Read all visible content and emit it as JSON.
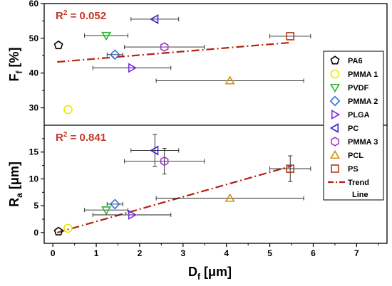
{
  "chart_data": [
    {
      "type": "scatter",
      "panel": "top",
      "ylabel": "F",
      "ylabel_sub": "f",
      "ylabel_unit": "[%]",
      "ylim": [
        25,
        60
      ],
      "yticks": [
        30,
        40,
        50,
        60
      ],
      "annotation": {
        "prefix": "R",
        "sup": "2",
        "value": " = 0.052"
      },
      "points": [
        {
          "name": "PA6",
          "x": 0.13,
          "y": 48.0,
          "xerr": 0.0
        },
        {
          "name": "PMMA 1",
          "x": 0.35,
          "y": 29.5,
          "xerr": 0.0
        },
        {
          "name": "PVDF",
          "x": 1.23,
          "y": 50.8,
          "xerr": 0.5
        },
        {
          "name": "PMMA 2",
          "x": 1.43,
          "y": 45.3,
          "xerr": 0.18
        },
        {
          "name": "PLGA",
          "x": 1.82,
          "y": 41.5,
          "xerr": 0.9
        },
        {
          "name": "PC",
          "x": 2.35,
          "y": 55.5,
          "xerr": 0.55
        },
        {
          "name": "PMMA 3",
          "x": 2.57,
          "y": 47.5,
          "xerr": 0.92
        },
        {
          "name": "PCL",
          "x": 4.08,
          "y": 37.8,
          "xerr": 1.7
        },
        {
          "name": "PS",
          "x": 5.47,
          "y": 50.6,
          "xerr": 0.47
        }
      ],
      "trend": {
        "x": [
          0.1,
          5.5
        ],
        "y": [
          43.2,
          48.8
        ]
      }
    },
    {
      "type": "scatter",
      "panel": "bottom",
      "ylabel": "R",
      "ylabel_sub": "a",
      "ylabel_unit": "[μm]",
      "ylim": [
        -2,
        20
      ],
      "yticks": [
        0,
        5,
        10,
        15
      ],
      "annotation": {
        "prefix": "R",
        "sup": "2",
        "value": " = 0.841"
      },
      "points": [
        {
          "name": "PA6",
          "x": 0.13,
          "y": 0.2,
          "xerr": 0.0,
          "yerr": 0.0
        },
        {
          "name": "PMMA 1",
          "x": 0.35,
          "y": 0.8,
          "xerr": 0.0,
          "yerr": 0.0
        },
        {
          "name": "PVDF",
          "x": 1.23,
          "y": 4.2,
          "xerr": 0.5,
          "yerr": 0.0
        },
        {
          "name": "PMMA 2",
          "x": 1.43,
          "y": 5.3,
          "xerr": 0.18,
          "yerr": 0.0
        },
        {
          "name": "PLGA",
          "x": 1.82,
          "y": 3.3,
          "xerr": 0.9,
          "yerr": 0.0
        },
        {
          "name": "PC",
          "x": 2.35,
          "y": 15.3,
          "xerr": 0.55,
          "yerr": 3.0
        },
        {
          "name": "PMMA 3",
          "x": 2.57,
          "y": 13.3,
          "xerr": 0.92,
          "yerr": 2.4
        },
        {
          "name": "PCL",
          "x": 4.08,
          "y": 6.4,
          "xerr": 1.7,
          "yerr": 0.0
        },
        {
          "name": "PS",
          "x": 5.47,
          "y": 11.9,
          "xerr": 0.47,
          "yerr": 2.4
        }
      ],
      "trend": {
        "x": [
          0.1,
          5.5
        ],
        "y": [
          0.0,
          12.4
        ]
      }
    }
  ],
  "x_axis": {
    "label": "D",
    "label_sub": "f",
    "unit": "[μm]",
    "xlim": [
      -0.2,
      7.7
    ],
    "ticks": [
      0,
      1,
      2,
      3,
      4,
      5,
      6,
      7
    ]
  },
  "legend": {
    "placement": "right",
    "items": [
      {
        "name": "PA6",
        "marker": "pentagon",
        "color": "#000000"
      },
      {
        "name": "PMMA 1",
        "marker": "circle",
        "color": "#e8e800"
      },
      {
        "name": "PVDF",
        "marker": "triangle-down",
        "color": "#2db52d"
      },
      {
        "name": "PMMA 2",
        "marker": "diamond",
        "color": "#2f6fe0"
      },
      {
        "name": "PLGA",
        "marker": "triangle-right",
        "color": "#7b2fe0"
      },
      {
        "name": "PC",
        "marker": "triangle-left",
        "color": "#3a1fd0"
      },
      {
        "name": "PMMA 3",
        "marker": "hexagon",
        "color": "#a035c8"
      },
      {
        "name": "PCL",
        "marker": "triangle-up",
        "color": "#d4900a"
      },
      {
        "name": "PS",
        "marker": "square",
        "color": "#b03a1a"
      }
    ],
    "trend_label_1": "Trend",
    "trend_label_2": "Line",
    "trend_color": "#b5200f"
  }
}
